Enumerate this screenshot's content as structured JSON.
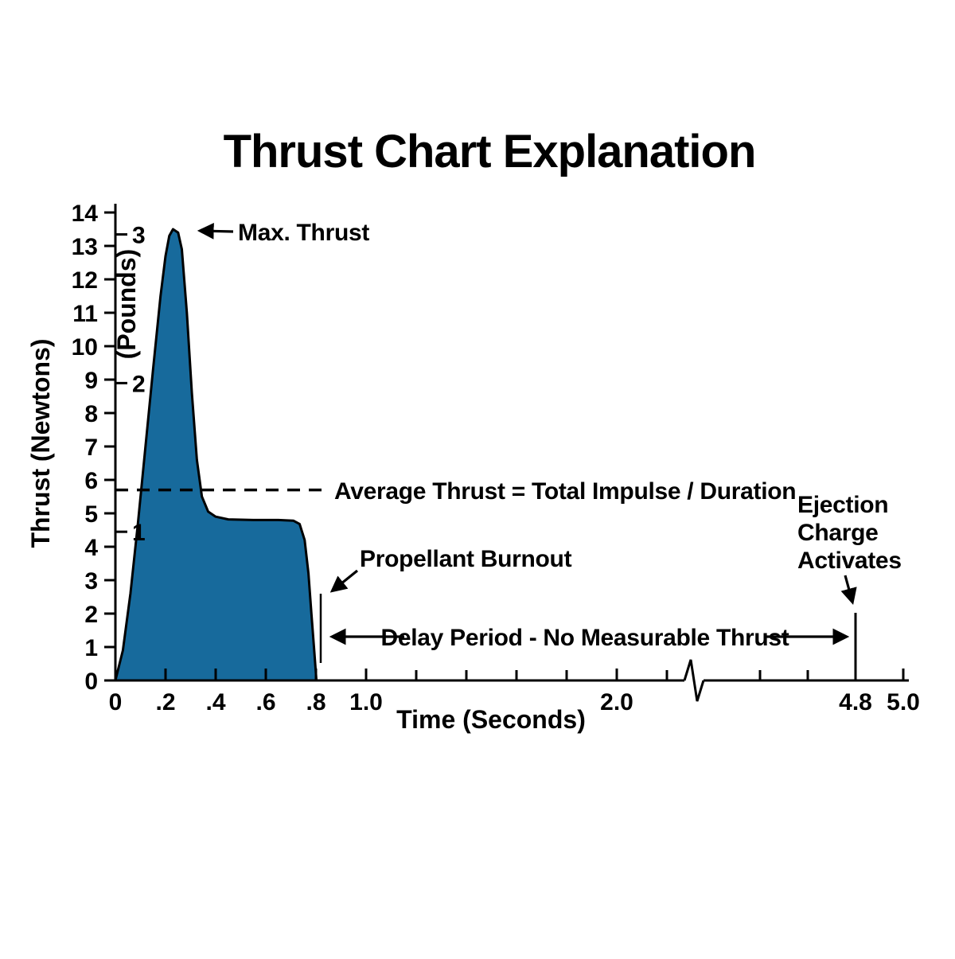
{
  "chart_data": {
    "type": "area",
    "title": "Thrust Chart Explanation",
    "xlabel": "Time (Seconds)",
    "ylabel": "Thrust (Newtons)",
    "ylabel_secondary": "(Pounds)",
    "xlim": [
      0,
      5.0
    ],
    "ylim": [
      0,
      14
    ],
    "x_axis_break_at_s": 2.3,
    "curve_color": "#176a9c",
    "newtons_per_pound": 4.448,
    "y_ticks_newtons": [
      0,
      1,
      2,
      3,
      4,
      5,
      6,
      7,
      8,
      9,
      10,
      11,
      12,
      13,
      14
    ],
    "y_ticks_pounds": [
      1,
      2,
      3
    ],
    "x_ticks_major": [
      {
        "t": 0,
        "label": "0"
      },
      {
        "t": 0.2,
        "label": ".2"
      },
      {
        "t": 0.4,
        "label": ".4"
      },
      {
        "t": 0.6,
        "label": ".6"
      },
      {
        "t": 0.8,
        "label": ".8"
      },
      {
        "t": 1.0,
        "label": "1.0"
      },
      {
        "t": 2.0,
        "label": "2.0"
      },
      {
        "t": 4.8,
        "label": "4.8"
      },
      {
        "t": 5.0,
        "label": "5.0"
      }
    ],
    "x_ticks_minor": [
      1.2,
      1.4,
      1.6,
      1.8,
      2.2,
      4.4,
      4.6
    ],
    "average_thrust_n": 5.7,
    "max_thrust_n": 13.5,
    "burnout_time_s": 0.8,
    "ejection_time_s": 4.8,
    "curve": [
      [
        0,
        0
      ],
      [
        0.03,
        0.9
      ],
      [
        0.06,
        2.6
      ],
      [
        0.09,
        4.7
      ],
      [
        0.12,
        7.0
      ],
      [
        0.15,
        9.3
      ],
      [
        0.18,
        11.5
      ],
      [
        0.2,
        12.7
      ],
      [
        0.215,
        13.3
      ],
      [
        0.23,
        13.5
      ],
      [
        0.25,
        13.4
      ],
      [
        0.265,
        12.9
      ],
      [
        0.285,
        11.0
      ],
      [
        0.305,
        8.6
      ],
      [
        0.325,
        6.6
      ],
      [
        0.345,
        5.5
      ],
      [
        0.37,
        5.05
      ],
      [
        0.4,
        4.9
      ],
      [
        0.45,
        4.82
      ],
      [
        0.55,
        4.8
      ],
      [
        0.65,
        4.8
      ],
      [
        0.71,
        4.78
      ],
      [
        0.735,
        4.68
      ],
      [
        0.755,
        4.2
      ],
      [
        0.77,
        3.2
      ],
      [
        0.782,
        2.0
      ],
      [
        0.792,
        1.0
      ],
      [
        0.8,
        0.2
      ],
      [
        0.802,
        0
      ]
    ],
    "annotations": {
      "max_thrust": "Max. Thrust",
      "average_thrust": "Average Thrust = Total Impulse / Duration",
      "propellant_burnout": "Propellant Burnout",
      "delay_period": "Delay Period - No Measurable Thrust",
      "ejection_charge": [
        "Ejection",
        "Charge",
        "Activates"
      ]
    }
  }
}
